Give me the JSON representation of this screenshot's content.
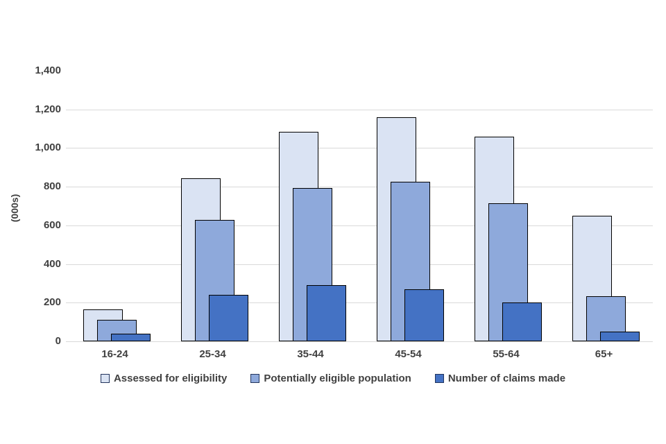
{
  "chart_data": {
    "type": "bar",
    "title": "",
    "xlabel": "",
    "ylabel": "(000s)",
    "categories": [
      "16-24",
      "25-34",
      "35-44",
      "45-54",
      "55-64",
      "65+"
    ],
    "series": [
      {
        "name": "Assessed for eligibility",
        "color": "#dae3f3",
        "values": [
          165,
          845,
          1085,
          1160,
          1060,
          650
        ]
      },
      {
        "name": "Potentially eligible population",
        "color": "#8ea9db",
        "values": [
          110,
          630,
          795,
          825,
          715,
          235
        ]
      },
      {
        "name": "Number of claims made",
        "color": "#4472c4",
        "values": [
          40,
          240,
          290,
          270,
          200,
          50
        ]
      }
    ],
    "ylim": [
      0,
      1400
    ],
    "yticks": [
      {
        "value": 0,
        "label": "0",
        "grid": true
      },
      {
        "value": 200,
        "label": "200",
        "grid": true
      },
      {
        "value": 400,
        "label": "400",
        "grid": true
      },
      {
        "value": 600,
        "label": "600",
        "grid": true
      },
      {
        "value": 800,
        "label": "800",
        "grid": true
      },
      {
        "value": 1000,
        "label": "1,000",
        "grid": true
      },
      {
        "value": 1200,
        "label": "1,200",
        "grid": true
      },
      {
        "value": 1400,
        "label": "1,400",
        "grid": false
      }
    ],
    "legend_position": "bottom",
    "overlap_style": "overlapping-offset-bars",
    "bar_border_color": "#000000",
    "grid_color": "#d9d9d9",
    "text_color": "#404040",
    "background": "#ffffff"
  }
}
